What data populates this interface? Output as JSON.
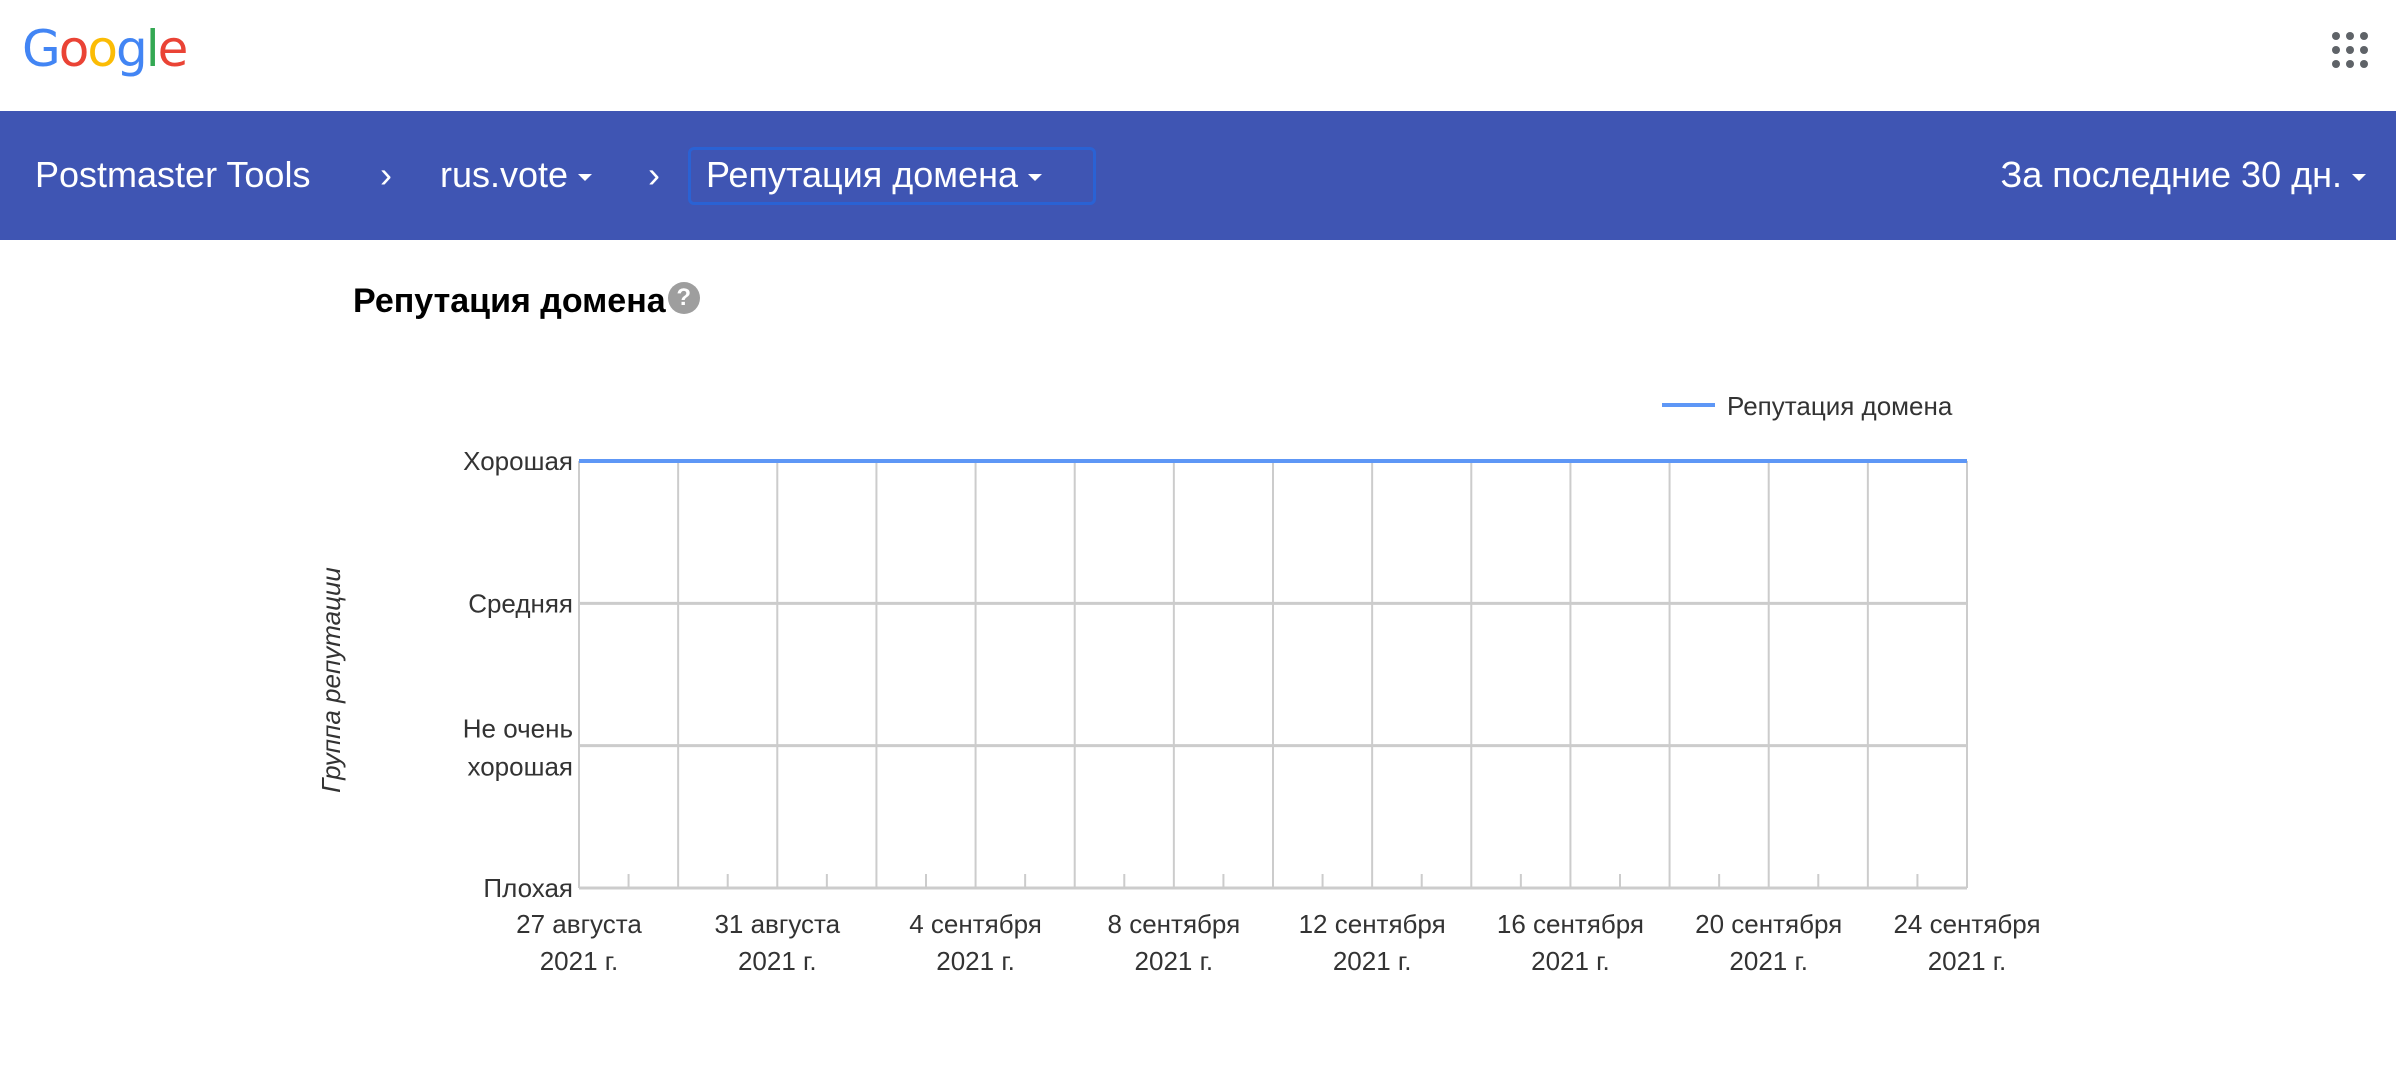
{
  "header": {
    "logo": "Google",
    "apps_icon": "apps-grid-icon"
  },
  "nav": {
    "app_name": "Postmaster Tools",
    "domain": "rus.vote",
    "section": "Репутация домена",
    "date_range": "За последние 30 дн.",
    "bar_color": "#3f55b3"
  },
  "page": {
    "title": "Репутация домена",
    "help_icon": "?"
  },
  "chart_data": {
    "type": "line",
    "ylabel": "Группа репутации",
    "y_categories": [
      "Плохая",
      "Не очень хорошая",
      "Средняя",
      "Хорошая"
    ],
    "y_tick_labels": [
      [
        "Плохая"
      ],
      [
        "Не очень",
        "хорошая"
      ],
      [
        "Средняя"
      ],
      [
        "Хорошая"
      ]
    ],
    "x_tick_labels": [
      [
        "27 августа",
        "2021 г."
      ],
      [
        "31 августа",
        "2021 г."
      ],
      [
        "4 сентября",
        "2021 г."
      ],
      [
        "8 сентября",
        "2021 г."
      ],
      [
        "12 сентября",
        "2021 г."
      ],
      [
        "16 сентября",
        "2021 г."
      ],
      [
        "20 сентября",
        "2021 г."
      ],
      [
        "24 сентября",
        "2021 г."
      ]
    ],
    "x_range": [
      "2021-08-27",
      "2021-09-24"
    ],
    "grid": true,
    "legend_position": "top-right",
    "series": [
      {
        "name": "Репутация домена",
        "color": "#5e97f6",
        "points": [
          {
            "x": "2021-08-27",
            "y": "Хорошая"
          },
          {
            "x": "2021-09-24",
            "y": "Хорошая"
          }
        ]
      }
    ]
  }
}
